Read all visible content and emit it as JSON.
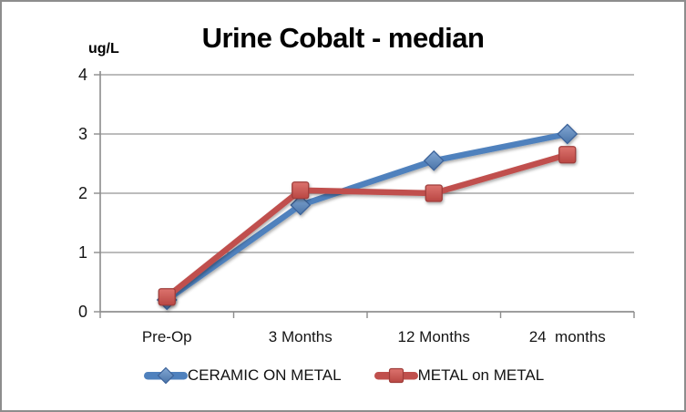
{
  "chart_data": {
    "type": "line",
    "title": "Urine Cobalt - median",
    "y_axis_label": "ug/L",
    "categories": [
      "Pre-Op",
      "3 Months",
      "12 Months",
      "24  months"
    ],
    "series": [
      {
        "name": "CERAMIC ON METAL",
        "marker": "diamond",
        "color": "#4F81BD",
        "marker_fill_top": "#82A7D3",
        "marker_fill_bottom": "#4A74A8",
        "marker_stroke": "#3C639A",
        "values": [
          0.2,
          1.8,
          2.55,
          3.0
        ]
      },
      {
        "name": "METAL on METAL",
        "marker": "square",
        "color": "#C0504D",
        "marker_fill_top": "#DC736E",
        "marker_fill_bottom": "#B94743",
        "marker_stroke": "#9E3D3A",
        "values": [
          0.25,
          2.05,
          2.0,
          2.65
        ]
      }
    ],
    "ylim": [
      0,
      4
    ],
    "yticks": [
      0,
      1,
      2,
      3,
      4
    ],
    "grid": true,
    "legend_position": "bottom",
    "grid_color": "#A6A6A6",
    "axis_color": "#8C8C8C",
    "border_color": "#8D8D8D",
    "background": "#FFFFFF"
  }
}
